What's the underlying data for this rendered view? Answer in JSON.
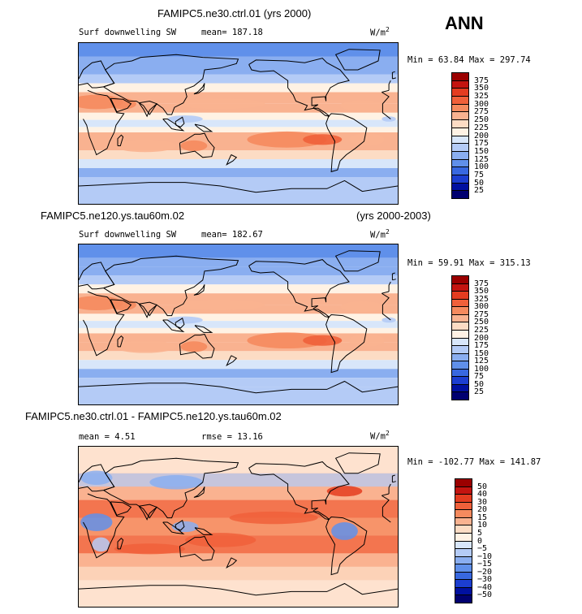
{
  "season": "ANN",
  "panels": [
    {
      "case_title": "FAMIPC5.ne30.ctrl.01 (yrs 2000)",
      "years": "",
      "variable": "Surf downwelling SW",
      "stat1": "mean= 187.18",
      "stat2": "",
      "units": "W/m",
      "units_exp": "2",
      "minmax": "Min =  63.84 Max = 297.74",
      "colorbar_labels": [
        "375",
        "350",
        "325",
        "300",
        "275",
        "250",
        "225",
        "200",
        "175",
        "150",
        "125",
        "100",
        "75",
        "50",
        "25"
      ],
      "colorbar_colors": [
        "#9b0000",
        "#c41410",
        "#e43c20",
        "#f0603a",
        "#f58a5e",
        "#f9b290",
        "#fcdcc4",
        "#fff2e4",
        "#d8e6fa",
        "#b4cbf6",
        "#8aaef0",
        "#6090ea",
        "#3868e0",
        "#1c3ed0",
        "#0010a0",
        "#000070"
      ],
      "map_type": "absolute"
    },
    {
      "case_title": "FAMIPC5.ne120.ys.tau60m.02",
      "years": "(yrs 2000-2003)",
      "variable": "Surf downwelling SW",
      "stat1": "mean= 182.67",
      "stat2": "",
      "units": "W/m",
      "units_exp": "2",
      "minmax": "Min =  59.91 Max = 315.13",
      "colorbar_labels": [
        "375",
        "350",
        "325",
        "300",
        "275",
        "250",
        "225",
        "200",
        "175",
        "150",
        "125",
        "100",
        "75",
        "50",
        "25"
      ],
      "colorbar_colors": [
        "#9b0000",
        "#c41410",
        "#e43c20",
        "#f0603a",
        "#f58a5e",
        "#f9b290",
        "#fcdcc4",
        "#fff2e4",
        "#d8e6fa",
        "#b4cbf6",
        "#8aaef0",
        "#6090ea",
        "#3868e0",
        "#1c3ed0",
        "#0010a0",
        "#000070"
      ],
      "map_type": "absolute"
    },
    {
      "case_title": "FAMIPC5.ne30.ctrl.01 - FAMIPC5.ne120.ys.tau60m.02",
      "years": "",
      "variable": "",
      "stat1": "mean =    4.51",
      "stat2": "rmse =   13.16",
      "units": "W/m",
      "units_exp": "2",
      "minmax": "Min = -102.77 Max = 141.87",
      "colorbar_labels": [
        "50",
        "40",
        "30",
        "20",
        "15",
        "10",
        "5",
        "0",
        "−5",
        "−10",
        "−15",
        "−20",
        "−30",
        "−40",
        "−50"
      ],
      "colorbar_colors": [
        "#9b0000",
        "#c41410",
        "#e43c20",
        "#f0603a",
        "#f58a5e",
        "#f9b290",
        "#fcdcc4",
        "#fff2e4",
        "#d8e6fa",
        "#b4cbf6",
        "#8aaef0",
        "#6090ea",
        "#3868e0",
        "#1c3ed0",
        "#0010a0",
        "#000070"
      ],
      "map_type": "difference"
    }
  ]
}
